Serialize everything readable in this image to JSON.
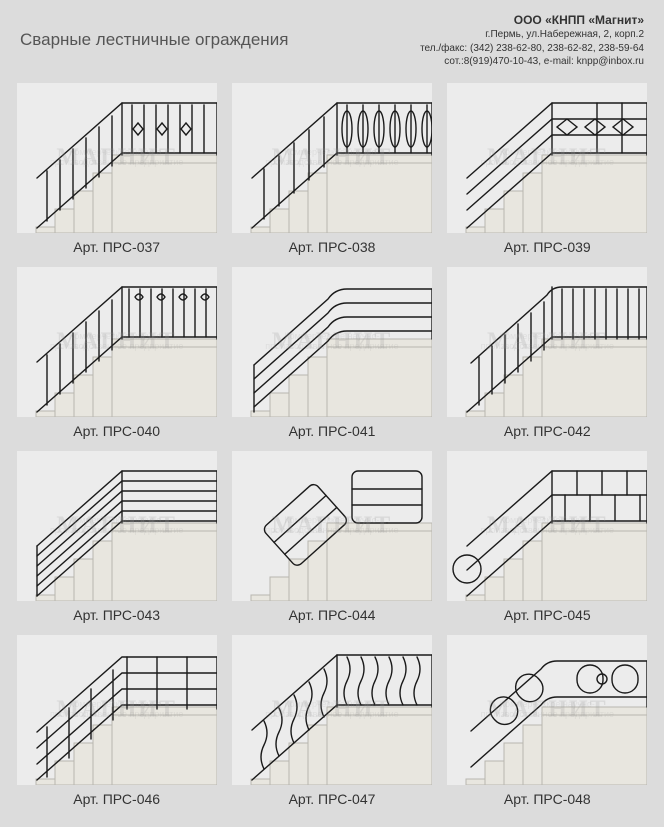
{
  "page": {
    "title": "Сварные лестничные ограждения",
    "background": "#dcdcdc",
    "cell_background": "#ececec",
    "stair_fill": "#e8e6df",
    "stair_stroke": "#b8b6af",
    "rail_color": "#1a1a1a",
    "rail_width": 1.4,
    "label_color": "#333333",
    "label_fontsize": 14,
    "watermark_text": "МАГНИТ",
    "watermark_sub": "Коммерческое научно-производственное предприятие"
  },
  "contact": {
    "company": "ООО «КНПП «Магнит»",
    "address": "г.Пермь, ул.Набережная, 2, корп.2",
    "phone": "тел./факс: (342) 238-62-80, 238-62-82, 238-59-64",
    "mobile": "сот.:8(919)470-10-43, e-mail: knpp@inbox.ru"
  },
  "items": [
    {
      "code": "Арт. ПРС-037",
      "style": "ornate-diamond"
    },
    {
      "code": "Арт. ПРС-038",
      "style": "ornate-oval"
    },
    {
      "code": "Арт. ПРС-039",
      "style": "horizontal-diamond"
    },
    {
      "code": "Арт. ПРС-040",
      "style": "ornate-scroll"
    },
    {
      "code": "Арт. ПРС-041",
      "style": "horizontal-curve"
    },
    {
      "code": "Арт. ПРС-042",
      "style": "vertical-bars"
    },
    {
      "code": "Арт. ПРС-043",
      "style": "horizontal-lines"
    },
    {
      "code": "Арт. ПРС-044",
      "style": "panel-rails"
    },
    {
      "code": "Арт. ПРС-045",
      "style": "block-pattern"
    },
    {
      "code": "Арт. ПРС-046",
      "style": "horizontal-posts"
    },
    {
      "code": "Арт. ПРС-047",
      "style": "wavy-vertical"
    },
    {
      "code": "Арт. ПРС-048",
      "style": "chain-loops"
    }
  ]
}
